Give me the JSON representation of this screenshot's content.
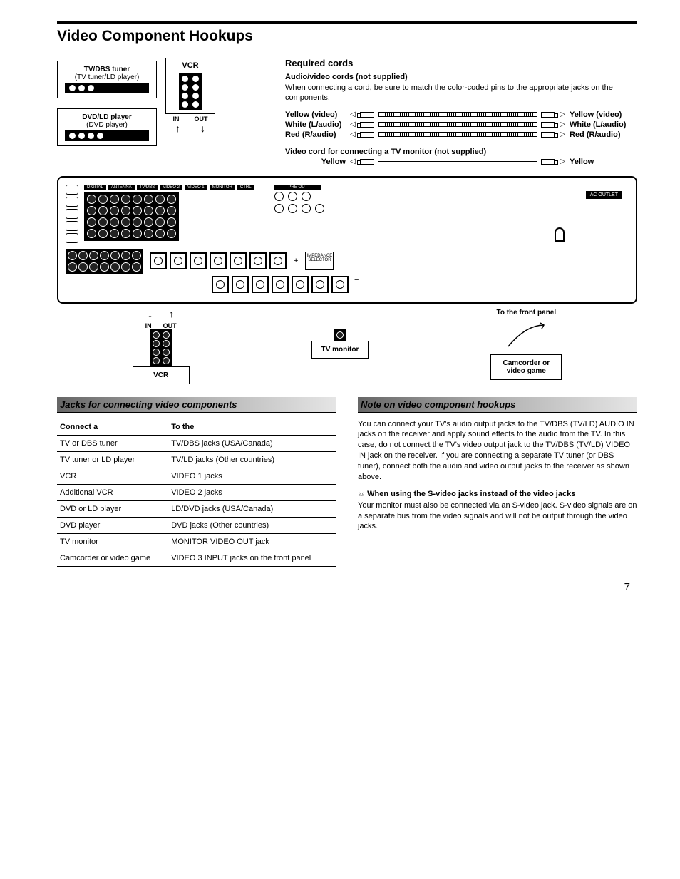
{
  "page": {
    "title": "Video Component Hookups",
    "number": "7"
  },
  "upper_diagram": {
    "tuner_box": {
      "line1": "TV/DBS tuner",
      "line2": "(TV tuner/LD player)"
    },
    "dvd_box": {
      "line1": "DVD/LD player",
      "line2": "(DVD player)"
    },
    "vcr_label": "VCR",
    "in_label": "IN",
    "out_label": "OUT"
  },
  "required_cords": {
    "heading": "Required cords",
    "av_heading": "Audio/video cords (not supplied)",
    "av_text": "When connecting a cord, be sure to match the color-coded pins to the appropriate jacks on the components.",
    "rows": [
      {
        "left": "Yellow (video)",
        "right": "Yellow (video)"
      },
      {
        "left": "White (L/audio)",
        "right": "White (L/audio)"
      },
      {
        "left": "Red (R/audio)",
        "right": "Red (R/audio)"
      }
    ],
    "video_cord_heading": "Video cord for connecting a TV monitor (not supplied)",
    "video_row": {
      "left": "Yellow",
      "right": "Yellow"
    }
  },
  "lower_diagram": {
    "vcr": "VCR",
    "tv_monitor": "TV monitor",
    "camcorder": "Camcorder or video game",
    "front_panel": "To the front panel",
    "in": "IN",
    "out": "OUT"
  },
  "jacks_section": {
    "heading": "Jacks for connecting video components",
    "col1": "Connect a",
    "col2": "To the",
    "rows": [
      [
        "TV or DBS tuner",
        "TV/DBS jacks (USA/Canada)"
      ],
      [
        "TV tuner or LD player",
        "TV/LD jacks (Other countries)"
      ],
      [
        "VCR",
        "VIDEO 1 jacks"
      ],
      [
        "Additional VCR",
        "VIDEO 2 jacks"
      ],
      [
        "DVD or LD player",
        "LD/DVD jacks (USA/Canada)"
      ],
      [
        "DVD player",
        "DVD jacks (Other countries)"
      ],
      [
        "TV monitor",
        "MONITOR VIDEO OUT jack"
      ],
      [
        "Camcorder or video game",
        "VIDEO 3 INPUT jacks on the front panel"
      ]
    ]
  },
  "note_section": {
    "heading": "Note on video component hookups",
    "body": "You can connect your TV's audio output jacks to the TV/DBS (TV/LD) AUDIO IN jacks on the receiver and apply sound effects to the audio from the TV. In this case, do not connect the TV's video output jack to the TV/DBS (TV/LD) VIDEO IN jack on the receiver. If you are connecting a separate TV tuner (or DBS tuner), connect both the audio and video output jacks to the receiver as shown above.",
    "tip_heading": "When using the S-video jacks instead of the video jacks",
    "tip_body": "Your monitor must also be connected via an S-video jack. S-video signals are on a separate bus from the video signals and will not be output through the video jacks."
  },
  "colors": {
    "text": "#000000",
    "bg": "#ffffff",
    "panel_dark": "#000000"
  }
}
